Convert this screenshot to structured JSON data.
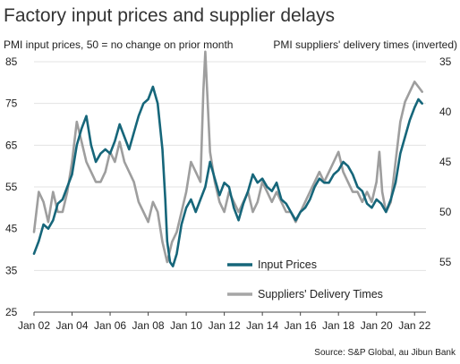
{
  "chart_data": {
    "type": "line",
    "title": "Factory input prices and supplier delays",
    "left_axis_label": "PMI input prices, 50 = no change on prior month",
    "right_axis_label": "PMI suppliers' delivery times (inverted)",
    "left_axis": {
      "ticks": [
        25,
        35,
        45,
        55,
        65,
        75,
        85
      ],
      "range": [
        25,
        85
      ]
    },
    "right_axis": {
      "ticks": [
        35,
        40,
        45,
        50,
        55
      ],
      "range": [
        35,
        60
      ],
      "inverted": true
    },
    "x_axis": {
      "ticks": [
        "Jan 02",
        "Jan 04",
        "Jan 06",
        "Jan 08",
        "Jan 10",
        "Jan 12",
        "Jan 14",
        "Jan 16",
        "Jan 18",
        "Jan 20",
        "Jan 22"
      ],
      "tick_years": [
        2002,
        2004,
        2006,
        2008,
        2010,
        2012,
        2014,
        2016,
        2018,
        2020,
        2022
      ],
      "range": [
        2002,
        2022.6
      ]
    },
    "grid": "horizontal",
    "legend_position": "bottom-right",
    "source": "Source: S&P Global, au Jibun Bank",
    "series": [
      {
        "name": "Input Prices",
        "axis": "left",
        "color": "#16667a",
        "points": [
          [
            2002.0,
            39
          ],
          [
            2002.25,
            42
          ],
          [
            2002.5,
            46
          ],
          [
            2002.75,
            45
          ],
          [
            2003.0,
            47
          ],
          [
            2003.25,
            51
          ],
          [
            2003.5,
            52
          ],
          [
            2003.75,
            55
          ],
          [
            2004.0,
            58
          ],
          [
            2004.25,
            65
          ],
          [
            2004.5,
            69
          ],
          [
            2004.75,
            72
          ],
          [
            2005.0,
            65
          ],
          [
            2005.25,
            61
          ],
          [
            2005.5,
            63
          ],
          [
            2005.75,
            64
          ],
          [
            2006.0,
            63
          ],
          [
            2006.25,
            66
          ],
          [
            2006.5,
            70
          ],
          [
            2006.75,
            67
          ],
          [
            2007.0,
            64
          ],
          [
            2007.25,
            68
          ],
          [
            2007.5,
            72
          ],
          [
            2007.75,
            75
          ],
          [
            2008.0,
            76
          ],
          [
            2008.25,
            79
          ],
          [
            2008.5,
            75
          ],
          [
            2008.75,
            64
          ],
          [
            2008.9,
            52
          ],
          [
            2009.0,
            42
          ],
          [
            2009.15,
            37
          ],
          [
            2009.3,
            36
          ],
          [
            2009.5,
            39
          ],
          [
            2009.75,
            46
          ],
          [
            2010.0,
            50
          ],
          [
            2010.25,
            52
          ],
          [
            2010.5,
            49
          ],
          [
            2010.75,
            52
          ],
          [
            2011.0,
            55
          ],
          [
            2011.25,
            61
          ],
          [
            2011.5,
            57
          ],
          [
            2011.75,
            53
          ],
          [
            2012.0,
            56
          ],
          [
            2012.25,
            55
          ],
          [
            2012.5,
            50
          ],
          [
            2012.75,
            47
          ],
          [
            2013.0,
            51
          ],
          [
            2013.25,
            54
          ],
          [
            2013.5,
            58
          ],
          [
            2013.75,
            56
          ],
          [
            2014.0,
            57
          ],
          [
            2014.25,
            55
          ],
          [
            2014.5,
            54
          ],
          [
            2014.75,
            56
          ],
          [
            2015.0,
            52
          ],
          [
            2015.25,
            51
          ],
          [
            2015.5,
            49
          ],
          [
            2015.75,
            47
          ],
          [
            2016.0,
            49
          ],
          [
            2016.25,
            50
          ],
          [
            2016.5,
            52
          ],
          [
            2016.75,
            55
          ],
          [
            2017.0,
            57
          ],
          [
            2017.25,
            56
          ],
          [
            2017.5,
            56
          ],
          [
            2017.75,
            58
          ],
          [
            2018.0,
            59
          ],
          [
            2018.25,
            61
          ],
          [
            2018.5,
            60
          ],
          [
            2018.75,
            58
          ],
          [
            2019.0,
            55
          ],
          [
            2019.25,
            54
          ],
          [
            2019.5,
            51
          ],
          [
            2019.75,
            50
          ],
          [
            2020.0,
            52
          ],
          [
            2020.25,
            51
          ],
          [
            2020.5,
            49
          ],
          [
            2020.75,
            52
          ],
          [
            2021.0,
            56
          ],
          [
            2021.25,
            63
          ],
          [
            2021.5,
            67
          ],
          [
            2021.75,
            71
          ],
          [
            2022.0,
            74
          ],
          [
            2022.2,
            76
          ],
          [
            2022.4,
            75
          ]
        ]
      },
      {
        "name": "Suppliers' Delivery Times",
        "axis": "right",
        "color": "#9e9e9e",
        "points": [
          [
            2002.0,
            52
          ],
          [
            2002.25,
            48
          ],
          [
            2002.5,
            49
          ],
          [
            2002.75,
            51
          ],
          [
            2003.0,
            48
          ],
          [
            2003.25,
            50
          ],
          [
            2003.5,
            50
          ],
          [
            2003.75,
            48
          ],
          [
            2004.0,
            45
          ],
          [
            2004.25,
            41
          ],
          [
            2004.5,
            43
          ],
          [
            2004.75,
            45
          ],
          [
            2005.0,
            46
          ],
          [
            2005.25,
            47
          ],
          [
            2005.5,
            47
          ],
          [
            2005.75,
            46
          ],
          [
            2006.0,
            44
          ],
          [
            2006.25,
            45
          ],
          [
            2006.5,
            43
          ],
          [
            2006.75,
            45
          ],
          [
            2007.0,
            46
          ],
          [
            2007.25,
            47
          ],
          [
            2007.5,
            49
          ],
          [
            2007.75,
            50
          ],
          [
            2008.0,
            51
          ],
          [
            2008.25,
            49
          ],
          [
            2008.5,
            50
          ],
          [
            2008.75,
            53
          ],
          [
            2009.0,
            55
          ],
          [
            2009.25,
            53
          ],
          [
            2009.5,
            52
          ],
          [
            2009.75,
            50
          ],
          [
            2010.0,
            48
          ],
          [
            2010.25,
            45
          ],
          [
            2010.5,
            46
          ],
          [
            2010.75,
            47
          ],
          [
            2010.9,
            38
          ],
          [
            2011.0,
            34
          ],
          [
            2011.1,
            38
          ],
          [
            2011.25,
            44
          ],
          [
            2011.5,
            47
          ],
          [
            2011.75,
            49
          ],
          [
            2012.0,
            50
          ],
          [
            2012.25,
            48
          ],
          [
            2012.5,
            49
          ],
          [
            2012.75,
            50
          ],
          [
            2013.0,
            49
          ],
          [
            2013.25,
            48
          ],
          [
            2013.5,
            50
          ],
          [
            2013.75,
            49
          ],
          [
            2014.0,
            47
          ],
          [
            2014.25,
            48
          ],
          [
            2014.5,
            49
          ],
          [
            2014.75,
            48
          ],
          [
            2015.0,
            49
          ],
          [
            2015.25,
            50
          ],
          [
            2015.5,
            50
          ],
          [
            2015.75,
            51
          ],
          [
            2016.0,
            50
          ],
          [
            2016.25,
            49
          ],
          [
            2016.5,
            48
          ],
          [
            2016.75,
            47
          ],
          [
            2017.0,
            46
          ],
          [
            2017.25,
            47
          ],
          [
            2017.5,
            46
          ],
          [
            2017.75,
            45
          ],
          [
            2018.0,
            44
          ],
          [
            2018.25,
            46
          ],
          [
            2018.5,
            47
          ],
          [
            2018.75,
            48
          ],
          [
            2019.0,
            48
          ],
          [
            2019.25,
            49
          ],
          [
            2019.5,
            48
          ],
          [
            2019.75,
            49
          ],
          [
            2020.0,
            47
          ],
          [
            2020.15,
            44
          ],
          [
            2020.3,
            48
          ],
          [
            2020.5,
            50
          ],
          [
            2020.75,
            49
          ],
          [
            2021.0,
            45
          ],
          [
            2021.25,
            41
          ],
          [
            2021.5,
            39
          ],
          [
            2021.75,
            38
          ],
          [
            2022.0,
            37
          ],
          [
            2022.2,
            37.5
          ],
          [
            2022.4,
            38
          ]
        ]
      }
    ]
  }
}
